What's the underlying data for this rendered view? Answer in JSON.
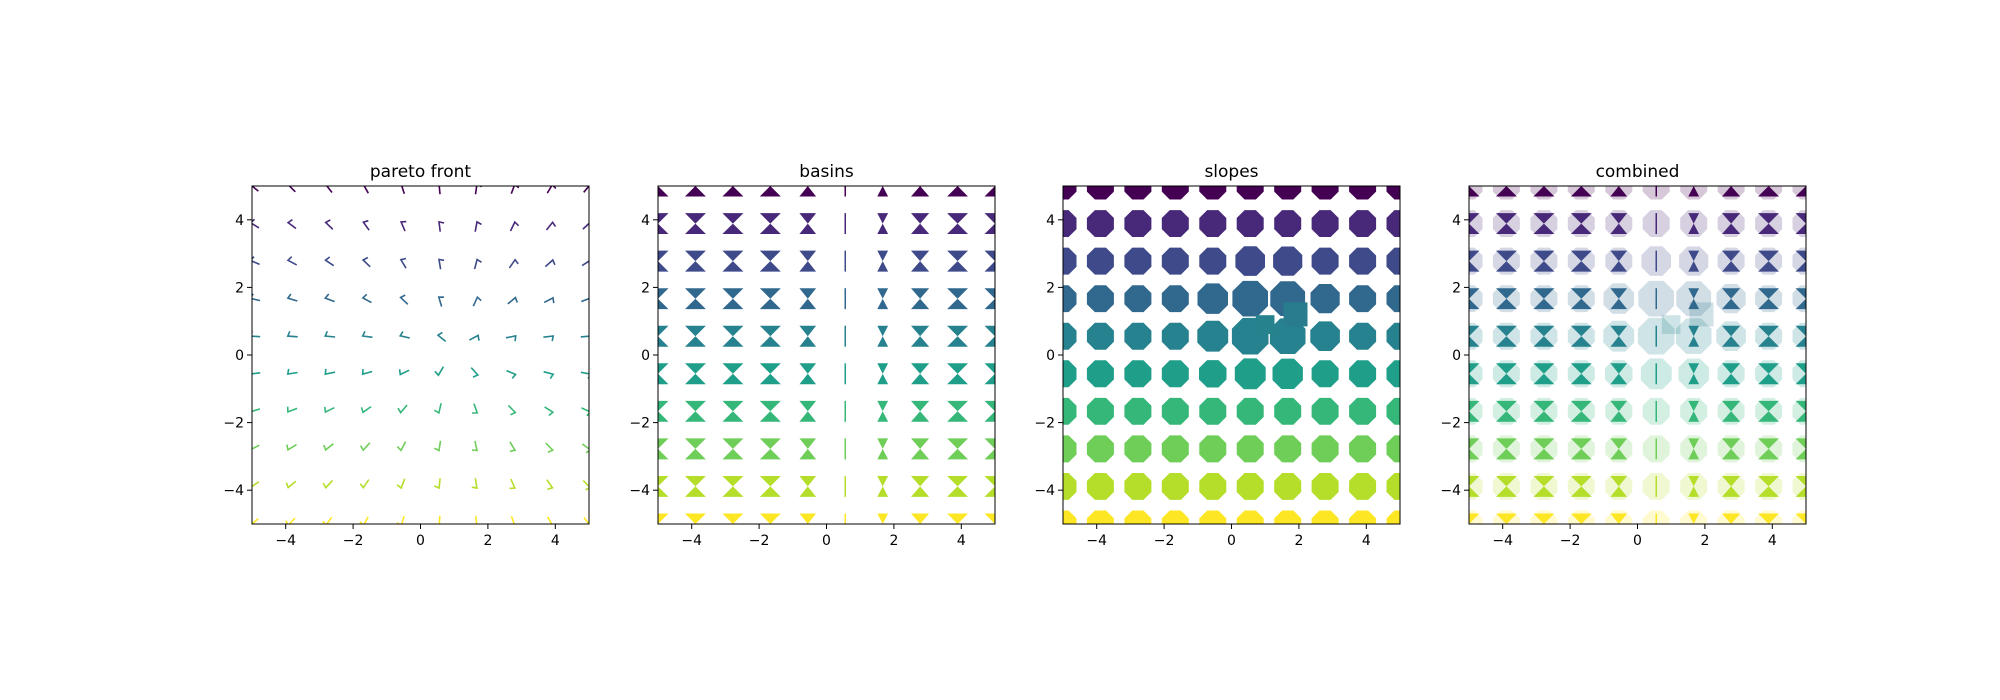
{
  "chart_data": [
    {
      "type": "quiver",
      "title": "pareto front",
      "xlim": [
        -5,
        5
      ],
      "ylim": [
        -5,
        5
      ],
      "xticks": [
        -4,
        -2,
        0,
        2,
        4
      ],
      "yticks": [
        -4,
        -2,
        0,
        2,
        4
      ],
      "xticklabels": [
        "−4",
        "−2",
        "0",
        "2",
        "4"
      ],
      "yticklabels": [
        "−4",
        "−2",
        "0",
        "2",
        "4"
      ],
      "grid_x": [
        -5.0,
        -3.889,
        -2.778,
        -1.667,
        -0.556,
        0.556,
        1.667,
        2.778,
        3.889,
        5.0
      ],
      "grid_y": [
        -5.0,
        -3.889,
        -2.778,
        -1.667,
        -0.556,
        0.556,
        1.667,
        2.778,
        3.889,
        5.0
      ],
      "colormap": "viridis",
      "color_by": "y",
      "layers": [
        "pareto"
      ]
    },
    {
      "type": "quiver",
      "title": "basins",
      "xlim": [
        -5,
        5
      ],
      "ylim": [
        -5,
        5
      ],
      "xticks": [
        -4,
        -2,
        0,
        2,
        4
      ],
      "yticks": [
        -4,
        -2,
        0,
        2,
        4
      ],
      "xticklabels": [
        "−4",
        "−2",
        "0",
        "2",
        "4"
      ],
      "yticklabels": [
        "−4",
        "−2",
        "0",
        "2",
        "4"
      ],
      "grid_x": [
        -5.0,
        -3.889,
        -2.778,
        -1.667,
        -0.556,
        0.556,
        1.667,
        2.778,
        3.889,
        5.0
      ],
      "grid_y": [
        -5.0,
        -3.889,
        -2.778,
        -1.667,
        -0.556,
        0.556,
        1.667,
        2.778,
        3.889,
        5.0
      ],
      "colormap": "viridis",
      "color_by": "y",
      "layers": [
        "basins"
      ]
    },
    {
      "type": "quiver",
      "title": "slopes",
      "xlim": [
        -5,
        5
      ],
      "ylim": [
        -5,
        5
      ],
      "xticks": [
        -4,
        -2,
        0,
        2,
        4
      ],
      "yticks": [
        -4,
        -2,
        0,
        2,
        4
      ],
      "xticklabels": [
        "−4",
        "−2",
        "0",
        "2",
        "4"
      ],
      "yticklabels": [
        "−4",
        "−2",
        "0",
        "2",
        "4"
      ],
      "grid_x": [
        -5.0,
        -3.889,
        -2.778,
        -1.667,
        -0.556,
        0.556,
        1.667,
        2.778,
        3.889,
        5.0
      ],
      "grid_y": [
        -5.0,
        -3.889,
        -2.778,
        -1.667,
        -0.556,
        0.556,
        1.667,
        2.778,
        3.889,
        5.0
      ],
      "colormap": "viridis",
      "color_by": "y",
      "layers": [
        "slopes"
      ]
    },
    {
      "type": "quiver",
      "title": "combined",
      "xlim": [
        -5,
        5
      ],
      "ylim": [
        -5,
        5
      ],
      "xticks": [
        -4,
        -2,
        0,
        2,
        4
      ],
      "yticks": [
        -4,
        -2,
        0,
        2,
        4
      ],
      "xticklabels": [
        "−4",
        "−2",
        "0",
        "2",
        "4"
      ],
      "yticklabels": [
        "−4",
        "−2",
        "0",
        "2",
        "4"
      ],
      "grid_x": [
        -5.0,
        -3.889,
        -2.778,
        -1.667,
        -0.556,
        0.556,
        1.667,
        2.778,
        3.889,
        5.0
      ],
      "grid_y": [
        -5.0,
        -3.889,
        -2.778,
        -1.667,
        -0.556,
        0.556,
        1.667,
        2.778,
        3.889,
        5.0
      ],
      "colormap": "viridis",
      "color_by": "y",
      "layers": [
        "slopes-faded",
        "basins"
      ]
    }
  ],
  "colors": {
    "viridis_top": "#440154",
    "viridis_mid": "#21918c",
    "viridis_bottom": "#d8e219"
  }
}
